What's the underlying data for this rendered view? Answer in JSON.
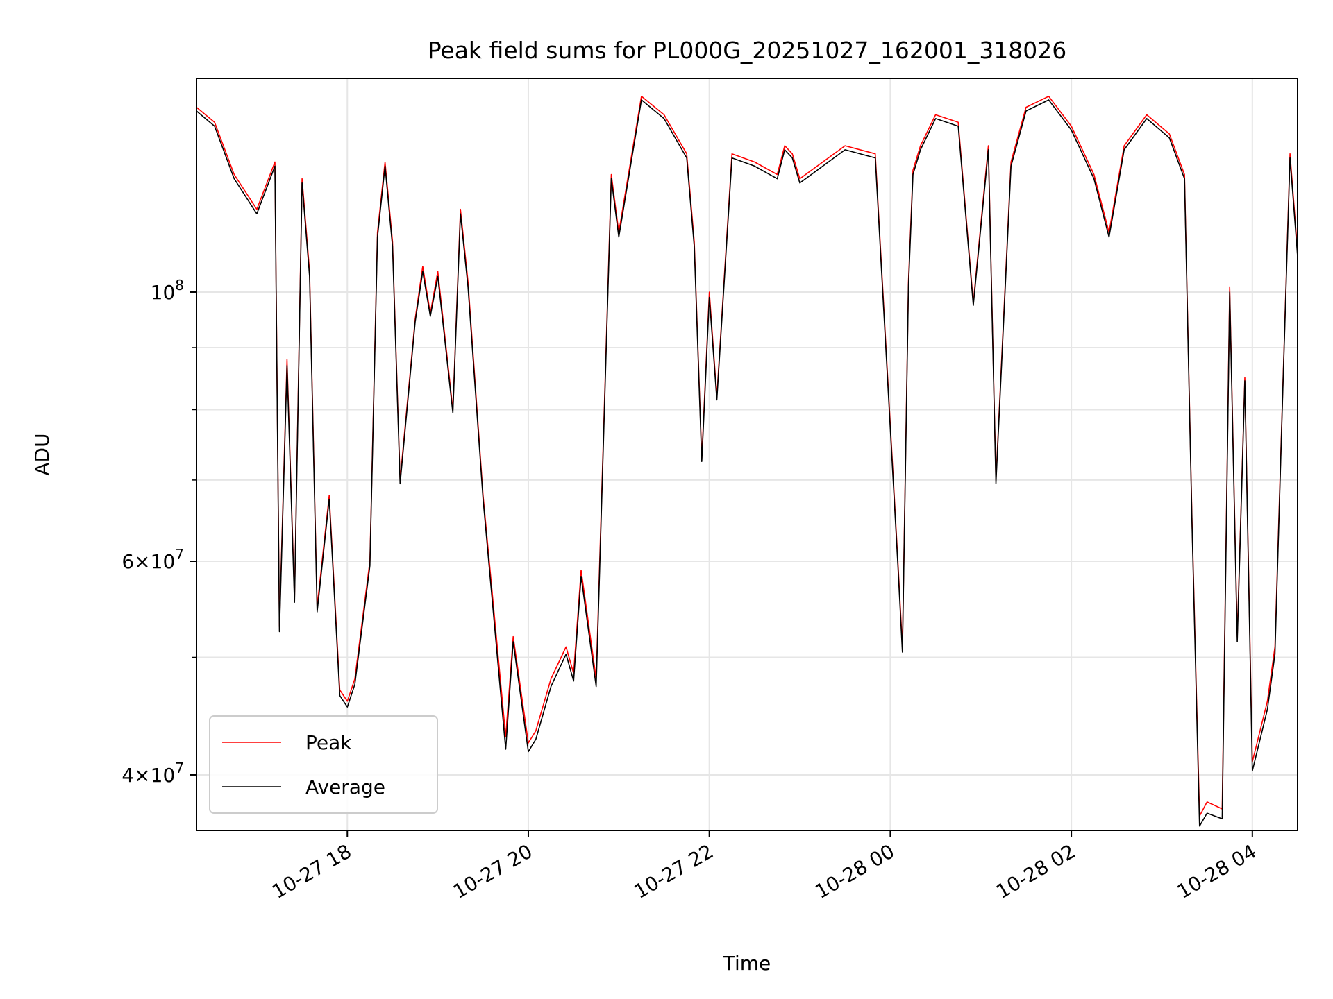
{
  "chart_data": {
    "type": "line",
    "title": "Peak field sums for PL000G_20251027_162001_318026",
    "xlabel": "Time",
    "ylabel": "ADU",
    "y_scale": "log",
    "xlim": [
      "2025-10-27 16:20",
      "2025-10-28 04:30"
    ],
    "ylim": [
      36000000,
      150000000
    ],
    "x_ticks": [
      {
        "t": "2025-10-27 18:00",
        "label": "10-27 18"
      },
      {
        "t": "2025-10-27 20:00",
        "label": "10-27 20"
      },
      {
        "t": "2025-10-27 22:00",
        "label": "10-27 22"
      },
      {
        "t": "2025-10-28 00:00",
        "label": "10-28 00"
      },
      {
        "t": "2025-10-28 02:00",
        "label": "10-28 02"
      },
      {
        "t": "2025-10-28 04:00",
        "label": "10-28 04"
      }
    ],
    "y_ticks": [
      {
        "value": 40000000,
        "mantissa": "4",
        "base": "10",
        "exp": "7"
      },
      {
        "value": 60000000,
        "mantissa": "6",
        "base": "10",
        "exp": "7"
      },
      {
        "value": 100000000,
        "mantissa": "",
        "base": "10",
        "exp": "8"
      }
    ],
    "y_minor_ticks": [
      50000000,
      70000000,
      80000000,
      90000000
    ],
    "grid": true,
    "legend_position": "lower-left",
    "series": [
      {
        "name": "Peak",
        "color": "#ff0000",
        "x": [
          "2025-10-27 16:20",
          "2025-10-27 16:32",
          "2025-10-27 16:45",
          "2025-10-27 17:00",
          "2025-10-27 17:12",
          "2025-10-27 17:15",
          "2025-10-27 17:20",
          "2025-10-27 17:25",
          "2025-10-27 17:30",
          "2025-10-27 17:35",
          "2025-10-27 17:40",
          "2025-10-27 17:48",
          "2025-10-27 17:55",
          "2025-10-27 18:00",
          "2025-10-27 18:05",
          "2025-10-27 18:15",
          "2025-10-27 18:20",
          "2025-10-27 18:25",
          "2025-10-27 18:30",
          "2025-10-27 18:35",
          "2025-10-27 18:45",
          "2025-10-27 18:50",
          "2025-10-27 18:55",
          "2025-10-27 19:00",
          "2025-10-27 19:10",
          "2025-10-27 19:15",
          "2025-10-27 19:20",
          "2025-10-27 19:30",
          "2025-10-27 19:45",
          "2025-10-27 19:50",
          "2025-10-27 20:00",
          "2025-10-27 20:05",
          "2025-10-27 20:15",
          "2025-10-27 20:25",
          "2025-10-27 20:30",
          "2025-10-27 20:35",
          "2025-10-27 20:45",
          "2025-10-27 20:55",
          "2025-10-27 21:00",
          "2025-10-27 21:15",
          "2025-10-27 21:30",
          "2025-10-27 21:45",
          "2025-10-27 21:50",
          "2025-10-27 21:55",
          "2025-10-27 22:00",
          "2025-10-27 22:05",
          "2025-10-27 22:15",
          "2025-10-27 22:30",
          "2025-10-27 22:45",
          "2025-10-27 22:50",
          "2025-10-27 22:55",
          "2025-10-27 23:00",
          "2025-10-27 23:30",
          "2025-10-27 23:50",
          "2025-10-28 00:05",
          "2025-10-28 00:08",
          "2025-10-28 00:12",
          "2025-10-28 00:15",
          "2025-10-28 00:20",
          "2025-10-28 00:30",
          "2025-10-28 00:45",
          "2025-10-28 00:55",
          "2025-10-28 01:05",
          "2025-10-28 01:10",
          "2025-10-28 01:20",
          "2025-10-28 01:30",
          "2025-10-28 01:45",
          "2025-10-28 02:00",
          "2025-10-28 02:15",
          "2025-10-28 02:25",
          "2025-10-28 02:35",
          "2025-10-28 02:50",
          "2025-10-28 03:05",
          "2025-10-28 03:15",
          "2025-10-28 03:20",
          "2025-10-28 03:25",
          "2025-10-28 03:30",
          "2025-10-28 03:40",
          "2025-10-28 03:45",
          "2025-10-28 03:50",
          "2025-10-28 03:55",
          "2025-10-28 04:00",
          "2025-10-28 04:10",
          "2025-10-28 04:15",
          "2025-10-28 04:20",
          "2025-10-28 04:25",
          "2025-10-28 04:30"
        ],
        "y": [
          142000000,
          138000000,
          125000000,
          117000000,
          128000000,
          53000000,
          88000000,
          56000000,
          124000000,
          104000000,
          55000000,
          68000000,
          47000000,
          46000000,
          48000000,
          60000000,
          112000000,
          128000000,
          110000000,
          70000000,
          95000000,
          105000000,
          96000000,
          104000000,
          80000000,
          117000000,
          102000000,
          68000000,
          43000000,
          52000000,
          42500000,
          43500000,
          48000000,
          51000000,
          48500000,
          59000000,
          48000000,
          125000000,
          112000000,
          145000000,
          140000000,
          130000000,
          110000000,
          73000000,
          100000000,
          82000000,
          130000000,
          128000000,
          125000000,
          132000000,
          130000000,
          124000000,
          132000000,
          130000000,
          60000000,
          51000000,
          102000000,
          126000000,
          132000000,
          140000000,
          138000000,
          98000000,
          132000000,
          70000000,
          128000000,
          142000000,
          145000000,
          137000000,
          125000000,
          112000000,
          132000000,
          140000000,
          135000000,
          125000000,
          65000000,
          37000000,
          38000000,
          37500000,
          101000000,
          52000000,
          85000000,
          41000000,
          46000000,
          51000000,
          82000000,
          130000000,
          108000000
        ]
      },
      {
        "name": "Average",
        "color": "#000000",
        "x": [
          "2025-10-27 16:20",
          "2025-10-27 16:32",
          "2025-10-27 16:45",
          "2025-10-27 17:00",
          "2025-10-27 17:12",
          "2025-10-27 17:15",
          "2025-10-27 17:20",
          "2025-10-27 17:25",
          "2025-10-27 17:30",
          "2025-10-27 17:35",
          "2025-10-27 17:40",
          "2025-10-27 17:48",
          "2025-10-27 17:55",
          "2025-10-27 18:00",
          "2025-10-27 18:05",
          "2025-10-27 18:15",
          "2025-10-27 18:20",
          "2025-10-27 18:25",
          "2025-10-27 18:30",
          "2025-10-27 18:35",
          "2025-10-27 18:45",
          "2025-10-27 18:50",
          "2025-10-27 18:55",
          "2025-10-27 19:00",
          "2025-10-27 19:10",
          "2025-10-27 19:15",
          "2025-10-27 19:20",
          "2025-10-27 19:30",
          "2025-10-27 19:45",
          "2025-10-27 19:50",
          "2025-10-27 20:00",
          "2025-10-27 20:05",
          "2025-10-27 20:15",
          "2025-10-27 20:25",
          "2025-10-27 20:30",
          "2025-10-27 20:35",
          "2025-10-27 20:45",
          "2025-10-27 20:55",
          "2025-10-27 21:00",
          "2025-10-27 21:15",
          "2025-10-27 21:30",
          "2025-10-27 21:45",
          "2025-10-27 21:50",
          "2025-10-27 21:55",
          "2025-10-27 22:00",
          "2025-10-27 22:05",
          "2025-10-27 22:15",
          "2025-10-27 22:30",
          "2025-10-27 22:45",
          "2025-10-27 22:50",
          "2025-10-27 22:55",
          "2025-10-27 23:00",
          "2025-10-27 23:30",
          "2025-10-27 23:50",
          "2025-10-28 00:05",
          "2025-10-28 00:08",
          "2025-10-28 00:12",
          "2025-10-28 00:15",
          "2025-10-28 00:20",
          "2025-10-28 00:30",
          "2025-10-28 00:45",
          "2025-10-28 00:55",
          "2025-10-28 01:05",
          "2025-10-28 01:10",
          "2025-10-28 01:20",
          "2025-10-28 01:30",
          "2025-10-28 01:45",
          "2025-10-28 02:00",
          "2025-10-28 02:15",
          "2025-10-28 02:25",
          "2025-10-28 02:35",
          "2025-10-28 02:50",
          "2025-10-28 03:05",
          "2025-10-28 03:15",
          "2025-10-28 03:20",
          "2025-10-28 03:25",
          "2025-10-28 03:30",
          "2025-10-28 03:40",
          "2025-10-28 03:45",
          "2025-10-28 03:50",
          "2025-10-28 03:55",
          "2025-10-28 04:00",
          "2025-10-28 04:10",
          "2025-10-28 04:15",
          "2025-10-28 04:20",
          "2025-10-28 04:25",
          "2025-10-28 04:30"
        ],
        "y": [
          141000000,
          137000000,
          124000000,
          116000000,
          127000000,
          52500000,
          87000000,
          55500000,
          123000000,
          103000000,
          54500000,
          67500000,
          46500000,
          45500000,
          47500000,
          59500000,
          111000000,
          127000000,
          109000000,
          69500000,
          94500000,
          104000000,
          95500000,
          103000000,
          79500000,
          116000000,
          101000000,
          67500000,
          42000000,
          51500000,
          41800000,
          42800000,
          47300000,
          50300000,
          47800000,
          58300000,
          47300000,
          124000000,
          111000000,
          144000000,
          139000000,
          129000000,
          109000000,
          72500000,
          99000000,
          81500000,
          129000000,
          127000000,
          124000000,
          131000000,
          129000000,
          123000000,
          131000000,
          129000000,
          59500000,
          50500000,
          101000000,
          125000000,
          131000000,
          139000000,
          137000000,
          97500000,
          131000000,
          69500000,
          127000000,
          141000000,
          144000000,
          136000000,
          124000000,
          111000000,
          131000000,
          139000000,
          134000000,
          124000000,
          64500000,
          36300000,
          37200000,
          36800000,
          100000000,
          51500000,
          84500000,
          40300000,
          45300000,
          50300000,
          81500000,
          129000000,
          107000000
        ]
      }
    ]
  }
}
